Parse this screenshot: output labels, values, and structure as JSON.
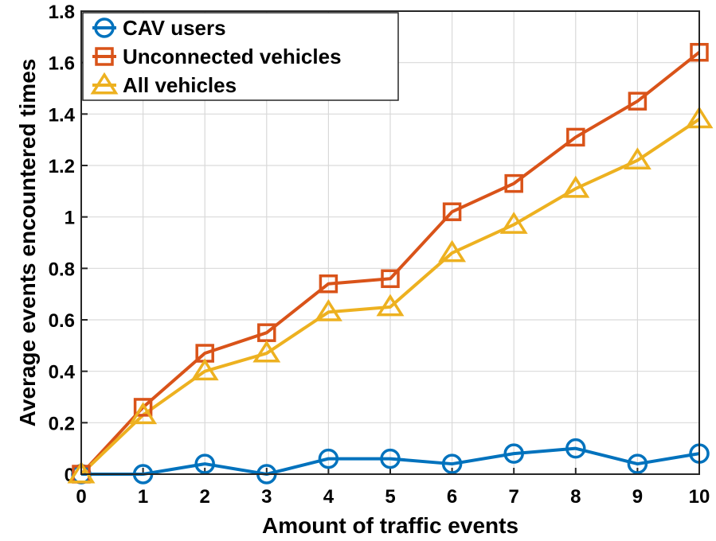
{
  "chart_data": {
    "type": "line",
    "title": "",
    "xlabel": "Amount of traffic events",
    "ylabel": "Average events encountered times",
    "x": [
      0,
      1,
      2,
      3,
      4,
      5,
      6,
      7,
      8,
      9,
      10
    ],
    "xlim": [
      0,
      10
    ],
    "ylim": [
      0,
      1.8
    ],
    "xticks": [
      "0",
      "1",
      "2",
      "3",
      "4",
      "5",
      "6",
      "7",
      "8",
      "9",
      "10"
    ],
    "yticks": [
      "0",
      "0.2",
      "0.4",
      "0.6",
      "0.8",
      "1",
      "1.2",
      "1.4",
      "1.6",
      "1.8"
    ],
    "grid": true,
    "legend_position": "top-left",
    "series": [
      {
        "name": "CAV users",
        "marker": "circle",
        "color": "#0072BD",
        "values": [
          0,
          0,
          0.04,
          0,
          0.06,
          0.06,
          0.04,
          0.08,
          0.1,
          0.04,
          0.08
        ]
      },
      {
        "name": "Unconnected vehicles",
        "marker": "square",
        "color": "#D95319",
        "values": [
          0,
          0.26,
          0.47,
          0.55,
          0.74,
          0.76,
          1.02,
          1.13,
          1.31,
          1.45,
          1.64
        ]
      },
      {
        "name": "All vehicles",
        "marker": "triangle",
        "color": "#EDB120",
        "values": [
          0,
          0.23,
          0.4,
          0.47,
          0.63,
          0.65,
          0.86,
          0.97,
          1.11,
          1.22,
          1.38
        ]
      }
    ]
  }
}
